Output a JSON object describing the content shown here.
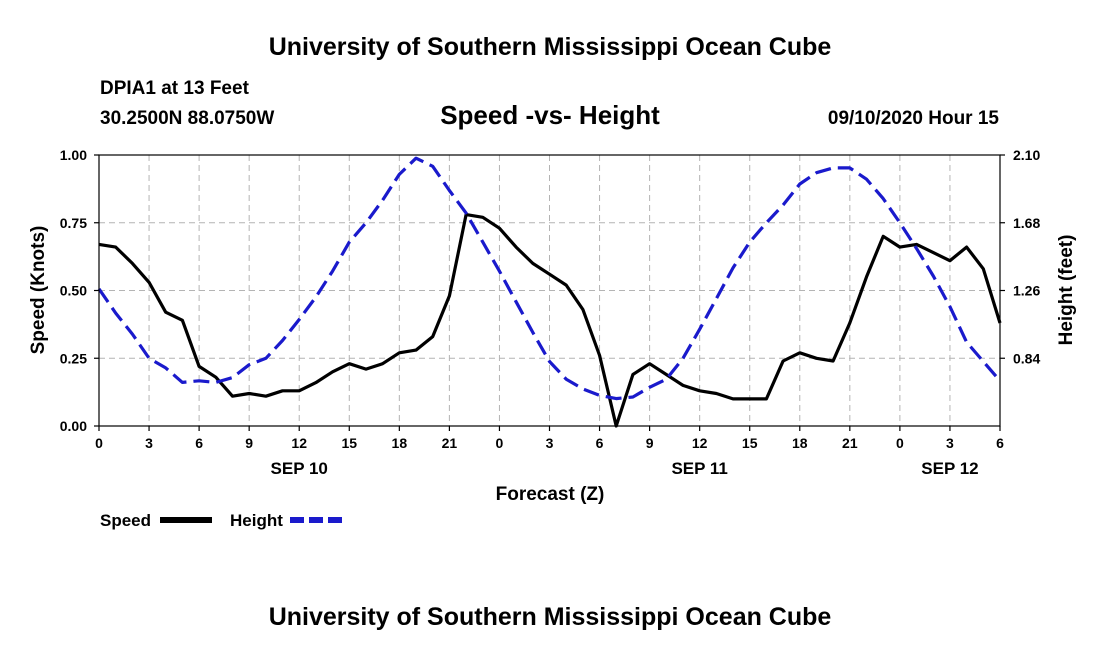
{
  "header": {
    "title": "University of Southern Mississippi Ocean Cube",
    "station": "DPIA1 at 13 Feet",
    "coords": "30.2500N 88.0750W",
    "plot_title": "Speed -vs- Height",
    "datetime": "09/10/2020 Hour 15"
  },
  "footer": {
    "title": "University of Southern Mississippi Ocean Cube"
  },
  "legend": {
    "speed_label": "Speed",
    "height_label": "Height",
    "speed_color": "#000000",
    "height_color": "#1a1acc"
  },
  "chart_data": {
    "type": "line",
    "title": "Speed -vs- Height",
    "xlabel": "Forecast (Z)",
    "ylabel": "Speed (Knots)",
    "y2label": "Height (feet)",
    "xlim": [
      0,
      54
    ],
    "ylim": [
      0,
      1.0
    ],
    "y2lim": [
      0.42,
      2.1
    ],
    "x_ticks": [
      0,
      3,
      6,
      9,
      12,
      15,
      18,
      21,
      24,
      27,
      30,
      33,
      36,
      39,
      42,
      45,
      48,
      51,
      54
    ],
    "x_tick_labels": [
      "0",
      "3",
      "6",
      "9",
      "12",
      "15",
      "18",
      "21",
      "0",
      "3",
      "6",
      "9",
      "12",
      "15",
      "18",
      "21",
      "0",
      "3",
      "6"
    ],
    "y_ticks": [
      0,
      0.25,
      0.5,
      0.75,
      1.0
    ],
    "y_tick_labels": [
      "0.00",
      "0.25",
      "0.50",
      "0.75",
      "1.00"
    ],
    "y2_ticks": [
      0.84,
      1.26,
      1.68,
      2.1
    ],
    "y2_tick_labels": [
      "0.84",
      "1.26",
      "1.68",
      "2.10"
    ],
    "date_labels": [
      {
        "x": 12,
        "label": "SEP 10"
      },
      {
        "x": 36,
        "label": "SEP 11"
      },
      {
        "x": 51,
        "label": "SEP 12"
      }
    ],
    "series": [
      {
        "name": "Speed",
        "axis": "left",
        "color": "#000000",
        "style": "solid",
        "x": [
          0,
          1,
          2,
          3,
          4,
          5,
          6,
          7,
          8,
          9,
          10,
          11,
          12,
          13,
          14,
          15,
          16,
          17,
          18,
          19,
          20,
          21,
          22,
          23,
          24,
          25,
          26,
          27,
          28,
          29,
          30,
          31,
          32,
          33,
          34,
          35,
          36,
          37,
          38,
          39,
          40,
          41,
          42,
          43,
          44,
          45,
          46,
          47,
          48,
          49,
          50,
          51,
          52,
          53,
          54
        ],
        "values": [
          0.67,
          0.66,
          0.6,
          0.53,
          0.42,
          0.39,
          0.22,
          0.18,
          0.11,
          0.12,
          0.11,
          0.13,
          0.13,
          0.16,
          0.2,
          0.23,
          0.21,
          0.23,
          0.27,
          0.28,
          0.33,
          0.48,
          0.78,
          0.77,
          0.73,
          0.66,
          0.6,
          0.56,
          0.52,
          0.43,
          0.26,
          0.0,
          0.19,
          0.23,
          0.19,
          0.15,
          0.13,
          0.12,
          0.1,
          0.1,
          0.1,
          0.24,
          0.27,
          0.25,
          0.24,
          0.38,
          0.55,
          0.7,
          0.66,
          0.67,
          0.64,
          0.61,
          0.66,
          0.58,
          0.38
        ]
      },
      {
        "name": "Height",
        "axis": "right",
        "color": "#1a1acc",
        "style": "dashed",
        "x": [
          0,
          1,
          2,
          3,
          4,
          5,
          6,
          7,
          8,
          9,
          10,
          11,
          12,
          13,
          14,
          15,
          16,
          17,
          18,
          19,
          20,
          21,
          22,
          23,
          24,
          25,
          26,
          27,
          28,
          29,
          30,
          31,
          32,
          33,
          34,
          35,
          36,
          37,
          38,
          39,
          40,
          41,
          42,
          43,
          44,
          45,
          46,
          47,
          48,
          49,
          50,
          51,
          52,
          53,
          54
        ],
        "values": [
          1.27,
          1.12,
          0.99,
          0.84,
          0.78,
          0.69,
          0.7,
          0.69,
          0.72,
          0.8,
          0.84,
          0.95,
          1.08,
          1.22,
          1.38,
          1.56,
          1.68,
          1.82,
          1.98,
          2.08,
          2.03,
          1.88,
          1.74,
          1.56,
          1.38,
          1.19,
          1.0,
          0.82,
          0.71,
          0.65,
          0.61,
          0.59,
          0.6,
          0.66,
          0.71,
          0.84,
          1.02,
          1.21,
          1.4,
          1.56,
          1.68,
          1.79,
          1.92,
          1.99,
          2.02,
          2.02,
          1.95,
          1.83,
          1.68,
          1.52,
          1.35,
          1.16,
          0.94,
          0.82,
          0.7
        ]
      }
    ]
  }
}
